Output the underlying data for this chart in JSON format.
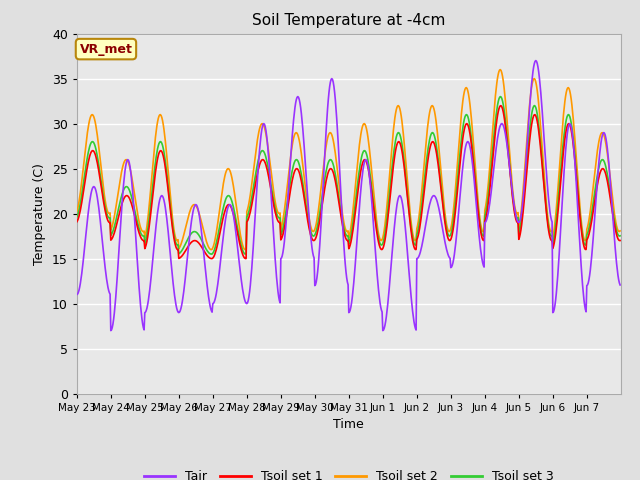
{
  "title": "Soil Temperature at -4cm",
  "xlabel": "Time",
  "ylabel": "Temperature (C)",
  "ylim": [
    0,
    40
  ],
  "yticks": [
    0,
    5,
    10,
    15,
    20,
    25,
    30,
    35,
    40
  ],
  "xtick_labels": [
    "May 23",
    "May 24",
    "May 25",
    "May 26",
    "May 27",
    "May 28",
    "May 29",
    "May 30",
    "May 31",
    "Jun 1",
    "Jun 2",
    "Jun 3",
    "Jun 4",
    "Jun 5",
    "Jun 6",
    "Jun 7"
  ],
  "bg_color": "#e0e0e0",
  "plot_bg": "#e8e8e8",
  "grid_color": "white",
  "annotation_text": "VR_met",
  "annotation_color": "#8b0000",
  "annotation_bg": "#ffffc0",
  "annotation_border": "#b8860b",
  "line_colors": {
    "Tair": "#9933ff",
    "Tsoil_set1": "#ff0000",
    "Tsoil_set2": "#ff9900",
    "Tsoil_set3": "#33cc33"
  },
  "legend_labels": [
    "Tair",
    "Tsoil set 1",
    "Tsoil set 2",
    "Tsoil set 3"
  ],
  "tair_peaks": [
    23,
    26,
    22,
    21,
    21,
    30,
    33,
    35,
    26,
    22,
    22,
    28,
    30,
    37,
    30,
    29
  ],
  "tair_troughs": [
    11,
    7,
    9,
    9,
    10,
    10,
    15,
    12,
    9,
    7,
    15,
    14,
    19,
    19,
    9,
    12
  ],
  "tsoil2_peaks": [
    31,
    26,
    31,
    21,
    25,
    30,
    29,
    29,
    30,
    32,
    32,
    34,
    36,
    35,
    34,
    29
  ],
  "tsoil2_troughs": [
    20,
    18,
    17,
    16,
    16,
    20,
    18,
    18,
    17,
    17,
    18,
    18,
    20,
    18,
    17,
    18
  ],
  "n_days": 16,
  "n_per_day": 48
}
